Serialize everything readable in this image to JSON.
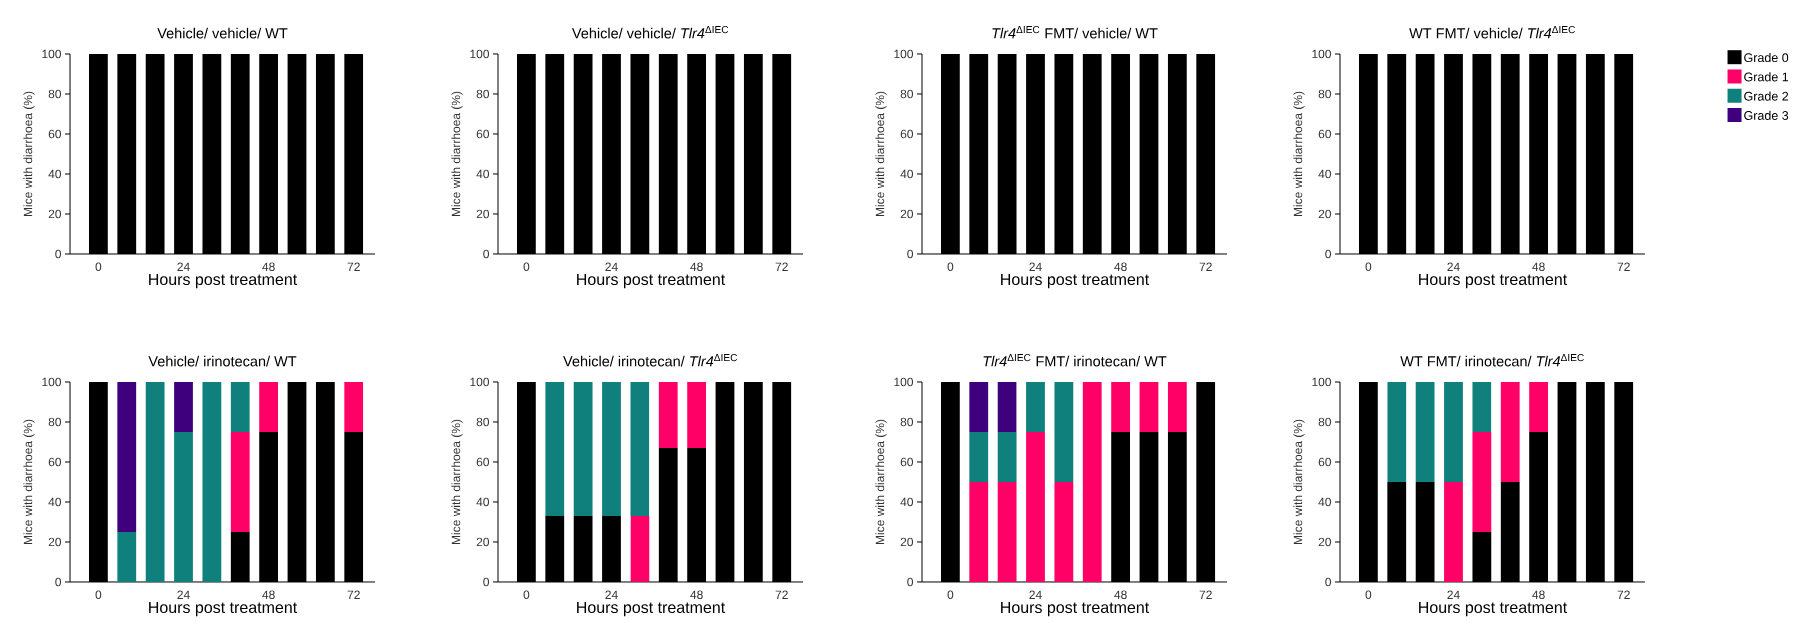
{
  "chart_data": [
    {
      "type": "bar",
      "stacked": true,
      "title": "Vehicle/ vehicle/ WT",
      "xlabel": "Hours post treatment",
      "ylabel": "Mice with diarrhoea (%)",
      "x": [
        0,
        8,
        16,
        24,
        32,
        40,
        48,
        56,
        64,
        72
      ],
      "xlim": [
        -8,
        78
      ],
      "xticks": [
        0,
        24,
        48,
        72
      ],
      "ylim": [
        0,
        100
      ],
      "yticks": [
        0,
        20,
        40,
        60,
        80,
        100
      ],
      "legend": false,
      "series": [
        {
          "color": "#000000",
          "values": [
            100,
            100,
            100,
            100,
            100,
            100,
            100,
            100,
            100,
            100
          ]
        },
        {
          "color": "#ff0066",
          "values": [
            0,
            0,
            0,
            0,
            0,
            0,
            0,
            0,
            0,
            0
          ]
        },
        {
          "color": "#10807d",
          "values": [
            0,
            0,
            0,
            0,
            0,
            0,
            0,
            0,
            0,
            0
          ]
        },
        {
          "color": "#3f007d",
          "values": [
            0,
            0,
            0,
            0,
            0,
            0,
            0,
            0,
            0,
            0
          ]
        }
      ]
    },
    {
      "type": "bar",
      "stacked": true,
      "title": "Vehicle/ vehicle/ *Tlr4*$^{ΔIEC}$",
      "xlabel": "Hours post treatment",
      "ylabel": "Mice with diarrhoea (%)",
      "x": [
        0,
        8,
        16,
        24,
        32,
        40,
        48,
        56,
        64,
        72
      ],
      "xlim": [
        -8,
        78
      ],
      "xticks": [
        0,
        24,
        48,
        72
      ],
      "ylim": [
        0,
        100
      ],
      "yticks": [
        0,
        20,
        40,
        60,
        80,
        100
      ],
      "legend": false,
      "series": [
        {
          "color": "#000000",
          "values": [
            100,
            100,
            100,
            100,
            100,
            100,
            100,
            100,
            100,
            100
          ]
        },
        {
          "color": "#ff0066",
          "values": [
            0,
            0,
            0,
            0,
            0,
            0,
            0,
            0,
            0,
            0
          ]
        },
        {
          "color": "#10807d",
          "values": [
            0,
            0,
            0,
            0,
            0,
            0,
            0,
            0,
            0,
            0
          ]
        },
        {
          "color": "#3f007d",
          "values": [
            0,
            0,
            0,
            0,
            0,
            0,
            0,
            0,
            0,
            0
          ]
        }
      ]
    },
    {
      "type": "bar",
      "stacked": true,
      "title": "*Tlr4*$^{ΔIEC}$ FMT/ vehicle/ WT",
      "xlabel": "Hours post treatment",
      "ylabel": "Mice with diarrhoea (%)",
      "x": [
        0,
        8,
        16,
        24,
        32,
        40,
        48,
        56,
        64,
        72
      ],
      "xlim": [
        -8,
        78
      ],
      "xticks": [
        0,
        24,
        48,
        72
      ],
      "ylim": [
        0,
        100
      ],
      "yticks": [
        0,
        20,
        40,
        60,
        80,
        100
      ],
      "legend": false,
      "series": [
        {
          "color": "#000000",
          "values": [
            100,
            100,
            100,
            100,
            100,
            100,
            100,
            100,
            100,
            100
          ]
        },
        {
          "color": "#ff0066",
          "values": [
            0,
            0,
            0,
            0,
            0,
            0,
            0,
            0,
            0,
            0
          ]
        },
        {
          "color": "#10807d",
          "values": [
            0,
            0,
            0,
            0,
            0,
            0,
            0,
            0,
            0,
            0
          ]
        },
        {
          "color": "#3f007d",
          "values": [
            0,
            0,
            0,
            0,
            0,
            0,
            0,
            0,
            0,
            0
          ]
        }
      ]
    },
    {
      "type": "bar",
      "stacked": true,
      "title": "WT FMT/ vehicle/ *Tlr4*$^{ΔIEC}$",
      "xlabel": "Hours post treatment",
      "ylabel": "Mice with diarrhoea (%)",
      "x": [
        0,
        8,
        16,
        24,
        32,
        40,
        48,
        56,
        64,
        72
      ],
      "xlim": [
        -8,
        78
      ],
      "xticks": [
        0,
        24,
        48,
        72
      ],
      "ylim": [
        0,
        100
      ],
      "yticks": [
        0,
        20,
        40,
        60,
        80,
        100
      ],
      "legend": "right",
      "series": [
        {
          "name": "Grade 0",
          "color": "#000000",
          "values": [
            100,
            100,
            100,
            100,
            100,
            100,
            100,
            100,
            100,
            100
          ]
        },
        {
          "name": "Grade 1",
          "color": "#ff0066",
          "values": [
            0,
            0,
            0,
            0,
            0,
            0,
            0,
            0,
            0,
            0
          ]
        },
        {
          "name": "Grade 2",
          "color": "#10807d",
          "values": [
            0,
            0,
            0,
            0,
            0,
            0,
            0,
            0,
            0,
            0
          ]
        },
        {
          "name": "Grade 3",
          "color": "#3f007d",
          "values": [
            0,
            0,
            0,
            0,
            0,
            0,
            0,
            0,
            0,
            0
          ]
        }
      ]
    },
    {
      "type": "bar",
      "stacked": true,
      "title": "Vehicle/ irinotecan/ WT",
      "xlabel": "Hours post treatment",
      "ylabel": "Mice with diarrhoea (%)",
      "x": [
        0,
        8,
        16,
        24,
        32,
        40,
        48,
        56,
        64,
        72
      ],
      "xlim": [
        -8,
        78
      ],
      "xticks": [
        0,
        24,
        48,
        72
      ],
      "ylim": [
        0,
        100
      ],
      "yticks": [
        0,
        20,
        40,
        60,
        80,
        100
      ],
      "legend": false,
      "series": [
        {
          "color": "#000000",
          "values": [
            100,
            0,
            0,
            0,
            0,
            25,
            75,
            100,
            100,
            75
          ]
        },
        {
          "color": "#ff0066",
          "values": [
            0,
            0,
            0,
            0,
            0,
            50,
            25,
            0,
            0,
            25
          ]
        },
        {
          "color": "#10807d",
          "values": [
            0,
            25,
            100,
            75,
            100,
            25,
            0,
            0,
            0,
            0
          ]
        },
        {
          "color": "#3f007d",
          "values": [
            0,
            75,
            0,
            25,
            0,
            0,
            0,
            0,
            0,
            0
          ]
        }
      ]
    },
    {
      "type": "bar",
      "stacked": true,
      "title": "Vehicle/ irinotecan/ *Tlr4*$^{ΔIEC}$",
      "xlabel": "Hours post treatment",
      "ylabel": "Mice with diarrhoea (%)",
      "x": [
        0,
        8,
        16,
        24,
        32,
        40,
        48,
        56,
        64,
        72
      ],
      "xlim": [
        -8,
        78
      ],
      "xticks": [
        0,
        24,
        48,
        72
      ],
      "ylim": [
        0,
        100
      ],
      "yticks": [
        0,
        20,
        40,
        60,
        80,
        100
      ],
      "legend": false,
      "series": [
        {
          "color": "#000000",
          "values": [
            100,
            33,
            33,
            33,
            0,
            67,
            67,
            100,
            100,
            100
          ]
        },
        {
          "color": "#ff0066",
          "values": [
            0,
            0,
            0,
            0,
            33,
            33,
            33,
            0,
            0,
            0
          ]
        },
        {
          "color": "#10807d",
          "values": [
            0,
            67,
            67,
            67,
            67,
            0,
            0,
            0,
            0,
            0
          ]
        },
        {
          "color": "#3f007d",
          "values": [
            0,
            0,
            0,
            0,
            0,
            0,
            0,
            0,
            0,
            0
          ]
        }
      ]
    },
    {
      "type": "bar",
      "stacked": true,
      "title": "*Tlr4*$^{ΔIEC}$ FMT/ irinotecan/ WT",
      "xlabel": "Hours post treatment",
      "ylabel": "Mice with diarrhoea (%)",
      "x": [
        0,
        8,
        16,
        24,
        32,
        40,
        48,
        56,
        64,
        72
      ],
      "xlim": [
        -8,
        78
      ],
      "xticks": [
        0,
        24,
        48,
        72
      ],
      "ylim": [
        0,
        100
      ],
      "yticks": [
        0,
        20,
        40,
        60,
        80,
        100
      ],
      "legend": false,
      "series": [
        {
          "color": "#000000",
          "values": [
            100,
            0,
            0,
            0,
            0,
            0,
            75,
            75,
            75,
            100
          ]
        },
        {
          "color": "#ff0066",
          "values": [
            0,
            50,
            50,
            75,
            50,
            100,
            25,
            25,
            25,
            0
          ]
        },
        {
          "color": "#10807d",
          "values": [
            0,
            25,
            25,
            25,
            50,
            0,
            0,
            0,
            0,
            0
          ]
        },
        {
          "color": "#3f007d",
          "values": [
            0,
            25,
            25,
            0,
            0,
            0,
            0,
            0,
            0,
            0
          ]
        }
      ]
    },
    {
      "type": "bar",
      "stacked": true,
      "title": "WT FMT/ irinotecan/ *Tlr4*$^{ΔIEC}$",
      "xlabel": "Hours post treatment",
      "ylabel": "Mice with diarrhoea (%)",
      "x": [
        0,
        8,
        16,
        24,
        32,
        40,
        48,
        56,
        64,
        72
      ],
      "xlim": [
        -8,
        78
      ],
      "xticks": [
        0,
        24,
        48,
        72
      ],
      "ylim": [
        0,
        100
      ],
      "yticks": [
        0,
        20,
        40,
        60,
        80,
        100
      ],
      "legend": false,
      "series": [
        {
          "color": "#000000",
          "values": [
            100,
            50,
            50,
            0,
            25,
            50,
            75,
            100,
            100,
            100
          ]
        },
        {
          "color": "#ff0066",
          "values": [
            0,
            0,
            0,
            50,
            50,
            50,
            25,
            0,
            0,
            0
          ]
        },
        {
          "color": "#10807d",
          "values": [
            0,
            50,
            50,
            50,
            25,
            0,
            0,
            0,
            0,
            0
          ]
        },
        {
          "color": "#3f007d",
          "values": [
            0,
            0,
            0,
            0,
            0,
            0,
            0,
            0,
            0,
            0
          ]
        }
      ]
    }
  ]
}
